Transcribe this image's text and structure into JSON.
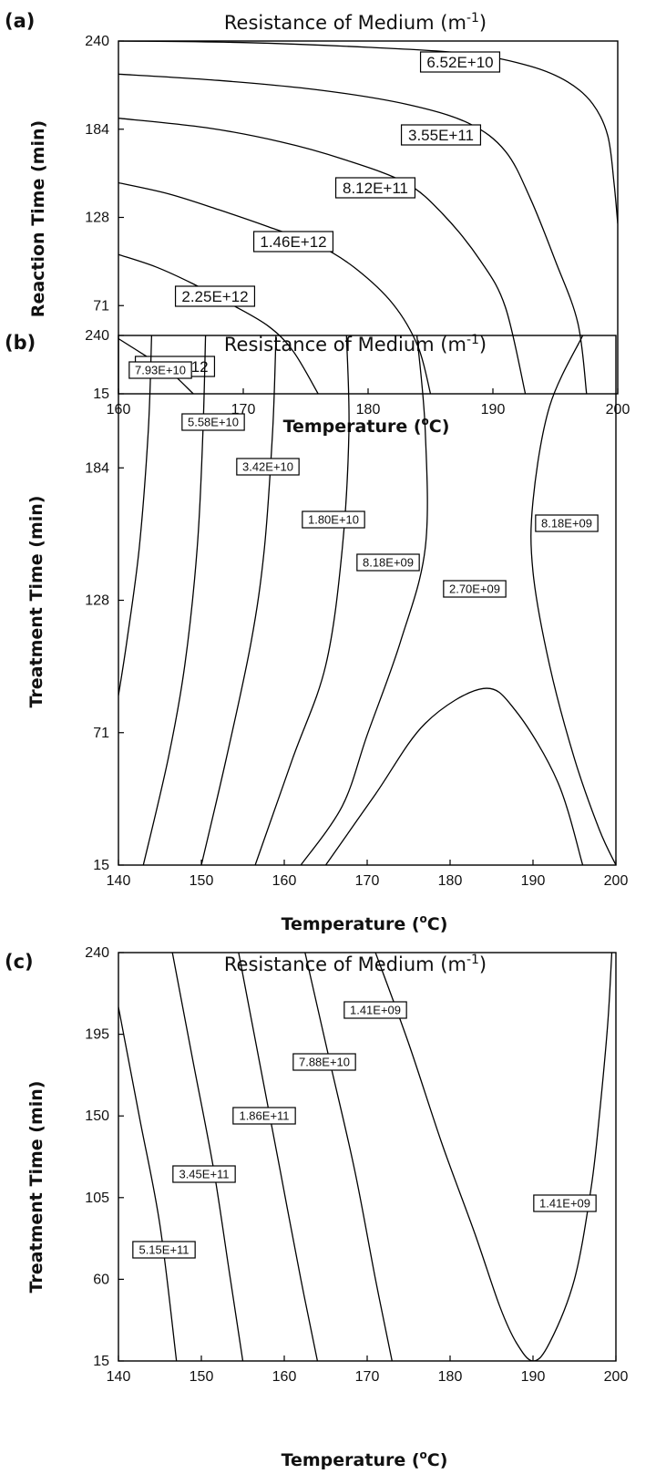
{
  "chart_data": [
    {
      "type": "contour",
      "panel": "(a)",
      "title": "Resistance of Medium",
      "title_unit": "(m",
      "title_sup": "-1",
      "title_close": ")",
      "xlabel": "Temperature",
      "xlabel_unit": "(",
      "xlabel_sup": "o",
      "xlabel_close": "C)",
      "ylabel": "Reaction Time (min)",
      "xlim": [
        160,
        200
      ],
      "ylim": [
        15,
        240
      ],
      "xticks": [
        "160",
        "170",
        "180",
        "190",
        "200"
      ],
      "yticks": [
        "15",
        "71",
        "128",
        "184",
        "240"
      ],
      "contours": [
        {
          "label": "6.52E+10",
          "points": [
            [
              160,
              240
            ],
            [
              170,
              239
            ],
            [
              180,
              236
            ],
            [
              188,
              232
            ],
            [
              193,
              224
            ],
            [
              196,
              214
            ],
            [
              198,
              200
            ],
            [
              199.2,
              180
            ],
            [
              199.7,
              150
            ],
            [
              200,
              124
            ]
          ]
        },
        {
          "label": "3.55E+11",
          "points": [
            [
              160,
              219
            ],
            [
              168,
              215
            ],
            [
              176,
              209
            ],
            [
              183,
              200
            ],
            [
              188,
              188
            ],
            [
              191,
              170
            ],
            [
              193,
              140
            ],
            [
              195,
              100
            ],
            [
              196.8,
              60
            ],
            [
              197.5,
              15
            ]
          ]
        },
        {
          "label": "8.12E+11",
          "points": [
            [
              160,
              191
            ],
            [
              167,
              185
            ],
            [
              173,
              176
            ],
            [
              178,
              165
            ],
            [
              183,
              150
            ],
            [
              186,
              130
            ],
            [
              189,
              100
            ],
            [
              191,
              70
            ],
            [
              192.6,
              15
            ]
          ]
        },
        {
          "label": "1.46E+12",
          "points": [
            [
              160,
              150
            ],
            [
              164,
              143
            ],
            [
              168,
              133
            ],
            [
              172,
              122
            ],
            [
              176,
              110
            ],
            [
              179,
              95
            ],
            [
              182,
              72
            ],
            [
              184,
              45
            ],
            [
              185,
              15
            ]
          ]
        },
        {
          "label": "2.25E+12",
          "points": [
            [
              160,
              104
            ],
            [
              163,
              96
            ],
            [
              166,
              85
            ],
            [
              169,
              72
            ],
            [
              172,
              58
            ],
            [
              174,
              42
            ],
            [
              176,
              15
            ]
          ]
        },
        {
          "label": "3.15E+12",
          "points": [
            [
              160,
              50
            ],
            [
              162,
              40
            ],
            [
              164,
              30
            ],
            [
              166,
              15
            ]
          ]
        }
      ]
    },
    {
      "type": "contour",
      "panel": "(b)",
      "title": "Resistance of Medium",
      "title_unit": "(m",
      "title_sup": "-1",
      "title_close": ")",
      "xlabel": "Temperature",
      "xlabel_unit": "(",
      "xlabel_sup": "o",
      "xlabel_close": "C)",
      "ylabel": "Treatment Time (min)",
      "xlim": [
        140,
        200
      ],
      "ylim": [
        15,
        240
      ],
      "xticks": [
        "140",
        "150",
        "160",
        "170",
        "180",
        "190",
        "200"
      ],
      "yticks": [
        "15",
        "71",
        "128",
        "184",
        "240"
      ],
      "contours": [
        {
          "label": "7.93E+10",
          "points": [
            [
              144,
              240
            ],
            [
              143.6,
              200
            ],
            [
              142.5,
              150
            ],
            [
              141,
              110
            ],
            [
              140,
              87
            ]
          ]
        },
        {
          "label": "5.58E+10",
          "points": [
            [
              150.5,
              240
            ],
            [
              150.2,
              200
            ],
            [
              149.5,
              150
            ],
            [
              148,
              100
            ],
            [
              146,
              60
            ],
            [
              143,
              15
            ]
          ]
        },
        {
          "label": "3.42E+10",
          "points": [
            [
              159,
              240
            ],
            [
              158.6,
              200
            ],
            [
              157.6,
              150
            ],
            [
              156,
              110
            ],
            [
              153,
              60
            ],
            [
              150,
              15
            ]
          ]
        },
        {
          "label": "1.80E+10",
          "points": [
            [
              167.5,
              240
            ],
            [
              167.8,
              200
            ],
            [
              167,
              150
            ],
            [
              165,
              100
            ],
            [
              161,
              60
            ],
            [
              156.5,
              15
            ]
          ]
        },
        {
          "label": "8.18E+09",
          "points": [
            [
              176,
              240
            ],
            [
              177,
              200
            ],
            [
              177,
              150
            ],
            [
              174,
              110
            ],
            [
              170,
              70
            ],
            [
              167,
              40
            ],
            [
              162,
              15
            ]
          ]
        },
        {
          "label": "8.18E+09",
          "points": [
            [
              196,
              240
            ],
            [
              192,
              210
            ],
            [
              190,
              170
            ],
            [
              190,
              140
            ],
            [
              192,
              100
            ],
            [
              195,
              60
            ],
            [
              198,
              30
            ],
            [
              200,
              15
            ]
          ]
        },
        {
          "label": "2.70E+09",
          "points": [
            [
              165,
              15
            ],
            [
              171,
              45
            ],
            [
              177,
              75
            ],
            [
              184,
              90
            ],
            [
              188,
              80
            ],
            [
              193,
              50
            ],
            [
              196,
              15
            ]
          ]
        }
      ]
    },
    {
      "type": "contour",
      "panel": "(c)",
      "title": "Resistance of Medium",
      "title_unit": "(m",
      "title_sup": "-1",
      "title_close": ")",
      "xlabel": "Temperature",
      "xlabel_unit": "(",
      "xlabel_sup": "o",
      "xlabel_close": "C)",
      "ylabel": "Treatment Time (min)",
      "xlim": [
        140,
        200
      ],
      "ylim": [
        15,
        240
      ],
      "xticks": [
        "140",
        "150",
        "160",
        "170",
        "180",
        "190",
        "200"
      ],
      "yticks": [
        "15",
        "60",
        "105",
        "150",
        "195",
        "240"
      ],
      "contours": [
        {
          "label": "5.15E+11",
          "points": [
            [
              140,
              210
            ],
            [
              142.5,
              150
            ],
            [
              145,
              90
            ],
            [
              147,
              15
            ]
          ]
        },
        {
          "label": "3.45E+11",
          "points": [
            [
              146.5,
              240
            ],
            [
              149,
              180
            ],
            [
              151.5,
              120
            ],
            [
              153.5,
              60
            ],
            [
              155,
              15
            ]
          ]
        },
        {
          "label": "1.86E+11",
          "points": [
            [
              154.5,
              240
            ],
            [
              157,
              180
            ],
            [
              159.5,
              120
            ],
            [
              162,
              60
            ],
            [
              164,
              15
            ]
          ]
        },
        {
          "label": "7.88E+10",
          "points": [
            [
              162.5,
              240
            ],
            [
              165.5,
              180
            ],
            [
              168.5,
              120
            ],
            [
              171,
              60
            ],
            [
              173,
              15
            ]
          ]
        },
        {
          "label": "1.41E+09",
          "points": [
            [
              171,
              240
            ],
            [
              175,
              190
            ],
            [
              179,
              135
            ],
            [
              183,
              85
            ],
            [
              186,
              45
            ],
            [
              188,
              25
            ],
            [
              190,
              15
            ],
            [
              192,
              25
            ],
            [
              195,
              60
            ],
            [
              197,
              110
            ],
            [
              198,
              150
            ],
            [
              199,
              200
            ],
            [
              199.5,
              240
            ]
          ]
        }
      ]
    }
  ]
}
